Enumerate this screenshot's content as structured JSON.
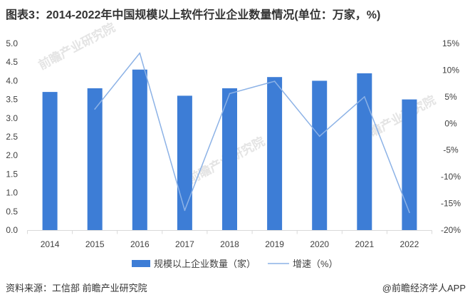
{
  "chart_data": {
    "type": "bar",
    "title": "图表3：2014-2022年中国规模以上软件行业企业数量情况(单位：万家，%)",
    "categories": [
      "2014",
      "2015",
      "2016",
      "2017",
      "2018",
      "2019",
      "2020",
      "2021",
      "2022"
    ],
    "series": [
      {
        "name": "规模以上企业数量（家）",
        "type": "bar",
        "axis": "left",
        "color": "#3d7dd6",
        "values": [
          3.7,
          3.8,
          4.3,
          3.6,
          3.8,
          4.1,
          4.0,
          4.2,
          3.5
        ]
      },
      {
        "name": "增速（%）",
        "type": "line",
        "axis": "right",
        "color": "#8cb2e6",
        "values": [
          null,
          2.7,
          13.2,
          -16.3,
          5.6,
          7.9,
          -2.4,
          5.0,
          -16.7
        ]
      }
    ],
    "y_left": {
      "range": [
        0,
        5
      ],
      "tick_labels": [
        "0.0",
        "0.5",
        "1.0",
        "1.5",
        "2.0",
        "2.5",
        "3.0",
        "3.5",
        "4.0",
        "4.5",
        "5.0"
      ]
    },
    "y_right": {
      "range": [
        -20,
        15
      ],
      "tick_labels": [
        "-20%",
        "-15%",
        "-10%",
        "-5%",
        "0%",
        "5%",
        "10%",
        "15%"
      ]
    },
    "grid": false,
    "legend": "bottom"
  },
  "source": "资料来源：工信部 前瞻产业研究院",
  "brand": "@前瞻经济学人APP",
  "watermark": "前瞻产业研究院"
}
